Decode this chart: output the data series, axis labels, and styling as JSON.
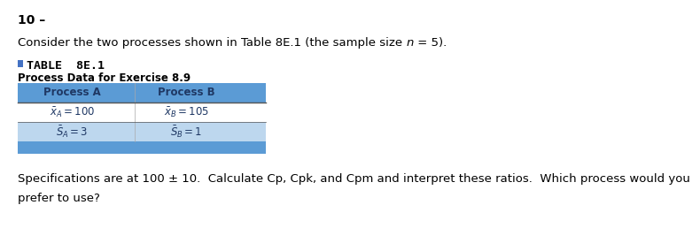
{
  "question_number": "10 –",
  "table_title_bullet_color": "#4472C4",
  "table_label": "TABLE  8E.1",
  "table_subtitle": "Process Data for Exercise 8.9",
  "header_bg_color": "#5B9BD5",
  "row_alt_bg_color": "#BDD7EE",
  "footer_text_line1": "Specifications are at 100 ± 10.  Calculate Cp, Cpk, and Cpm and interpret these ratios.  Which process would you",
  "footer_text_line2": "prefer to use?",
  "bg_color": "#ffffff",
  "text_color": "#000000",
  "table_text_color": "#1F3864",
  "header_text_color": "#1F3864"
}
